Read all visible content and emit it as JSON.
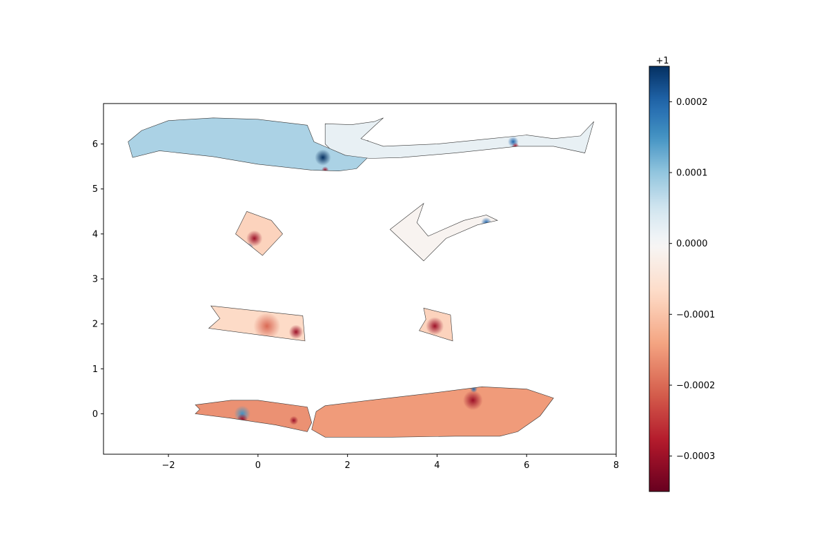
{
  "chart_data": {
    "type": "heatmap",
    "title": "",
    "xlabel": "",
    "ylabel": "",
    "xlim": [
      -3.45,
      8.0
    ],
    "ylim": [
      -0.9,
      6.9
    ],
    "x_ticks": [
      -2,
      0,
      2,
      4,
      6,
      8
    ],
    "y_ticks": [
      0,
      1,
      2,
      3,
      4,
      5,
      6
    ],
    "x_tick_labels": [
      "−2",
      "0",
      "2",
      "4",
      "6",
      "8"
    ],
    "y_tick_labels": [
      "0",
      "1",
      "2",
      "3",
      "4",
      "5",
      "6"
    ],
    "colorbar": {
      "colormap": "RdBu",
      "offset_label": "+1",
      "vmin": -0.00035,
      "vmax": 0.00025,
      "ticks": [
        0.0002,
        0.0001,
        0.0,
        -0.0001,
        -0.0002,
        -0.0003
      ],
      "tick_labels": [
        "0.0002",
        "0.0001",
        "0.0000",
        "−0.0001",
        "−0.0002",
        "−0.0003"
      ]
    },
    "regions": [
      {
        "id": "long-left-top",
        "value": 8e-05,
        "outline": [
          [
            -2.9,
            6.05
          ],
          [
            -2.6,
            6.3
          ],
          [
            -2.0,
            6.52
          ],
          [
            -1.0,
            6.58
          ],
          [
            0.0,
            6.55
          ],
          [
            1.1,
            6.42
          ],
          [
            1.25,
            6.05
          ],
          [
            1.6,
            5.9
          ],
          [
            2.2,
            6.0
          ],
          [
            2.45,
            6.08
          ],
          [
            2.6,
            5.95
          ],
          [
            2.45,
            5.7
          ],
          [
            2.2,
            5.45
          ],
          [
            1.8,
            5.4
          ],
          [
            1.2,
            5.42
          ],
          [
            0.0,
            5.55
          ],
          [
            -1.0,
            5.72
          ],
          [
            -2.2,
            5.85
          ],
          [
            -2.8,
            5.7
          ]
        ],
        "hotspots": [
          [
            1.45,
            5.7,
            0.00025,
            0.18
          ],
          [
            1.5,
            5.42,
            -0.0003,
            0.08
          ]
        ]
      },
      {
        "id": "long-right-top",
        "value": 2e-05,
        "outline": [
          [
            1.5,
            6.45
          ],
          [
            2.1,
            6.43
          ],
          [
            2.6,
            6.5
          ],
          [
            2.8,
            6.58
          ],
          [
            2.6,
            6.4
          ],
          [
            2.3,
            6.12
          ],
          [
            2.8,
            5.95
          ],
          [
            4.0,
            6.0
          ],
          [
            5.2,
            6.12
          ],
          [
            6.0,
            6.2
          ],
          [
            6.6,
            6.12
          ],
          [
            7.2,
            6.18
          ],
          [
            7.5,
            6.5
          ],
          [
            7.3,
            5.8
          ],
          [
            6.6,
            5.95
          ],
          [
            5.8,
            5.95
          ],
          [
            4.4,
            5.8
          ],
          [
            3.2,
            5.7
          ],
          [
            2.5,
            5.68
          ],
          [
            1.95,
            5.75
          ],
          [
            1.6,
            5.9
          ],
          [
            1.5,
            6.0
          ]
        ],
        "hotspots": [
          [
            5.7,
            6.05,
            0.0002,
            0.12
          ],
          [
            5.75,
            5.95,
            -0.0003,
            0.08
          ]
        ]
      },
      {
        "id": "small-mid-left",
        "value": -8e-05,
        "outline": [
          [
            -0.25,
            4.5
          ],
          [
            0.3,
            4.3
          ],
          [
            0.55,
            4.0
          ],
          [
            0.1,
            3.52
          ],
          [
            -0.5,
            4.0
          ]
        ],
        "hotspots": [
          [
            -0.08,
            3.9,
            -0.0003,
            0.18
          ],
          [
            -0.2,
            3.7,
            0.0002,
            0.1
          ]
        ]
      },
      {
        "id": "hook-mid-right",
        "value": -1e-05,
        "outline": [
          [
            2.95,
            4.1
          ],
          [
            3.7,
            4.68
          ],
          [
            3.55,
            4.25
          ],
          [
            3.8,
            3.95
          ],
          [
            4.6,
            4.3
          ],
          [
            5.1,
            4.42
          ],
          [
            5.35,
            4.3
          ],
          [
            4.9,
            4.2
          ],
          [
            4.2,
            3.9
          ],
          [
            3.7,
            3.4
          ]
        ],
        "hotspots": [
          [
            5.1,
            4.25,
            0.0002,
            0.12
          ]
        ]
      },
      {
        "id": "bar-low-left",
        "value": -7e-05,
        "outline": [
          [
            -1.05,
            2.4
          ],
          [
            1.0,
            2.18
          ],
          [
            1.05,
            1.62
          ],
          [
            -1.1,
            1.9
          ],
          [
            -0.85,
            2.12
          ]
        ],
        "hotspots": [
          [
            0.85,
            1.82,
            -0.0003,
            0.16
          ],
          [
            0.2,
            1.95,
            -0.0002,
            0.3
          ]
        ]
      },
      {
        "id": "small-low-right",
        "value": -8e-05,
        "outline": [
          [
            3.7,
            2.35
          ],
          [
            4.3,
            2.2
          ],
          [
            4.35,
            1.62
          ],
          [
            3.6,
            1.85
          ],
          [
            3.75,
            2.1
          ]
        ],
        "hotspots": [
          [
            3.95,
            1.95,
            -0.0003,
            0.2
          ]
        ]
      },
      {
        "id": "bottom-left",
        "value": -0.00016,
        "outline": [
          [
            -1.4,
            0.2
          ],
          [
            -0.6,
            0.3
          ],
          [
            0.0,
            0.3
          ],
          [
            1.1,
            0.15
          ],
          [
            1.2,
            -0.2
          ],
          [
            1.1,
            -0.4
          ],
          [
            0.4,
            -0.25
          ],
          [
            -0.6,
            -0.1
          ],
          [
            -1.4,
            0.0
          ],
          [
            -1.3,
            0.1
          ]
        ],
        "hotspots": [
          [
            -0.35,
            0.0,
            0.00015,
            0.18
          ],
          [
            -0.35,
            -0.12,
            -0.0003,
            0.12
          ],
          [
            0.8,
            -0.15,
            -0.0003,
            0.1
          ]
        ]
      },
      {
        "id": "bottom-right",
        "value": -0.00015,
        "outline": [
          [
            1.3,
            0.05
          ],
          [
            1.5,
            0.18
          ],
          [
            2.5,
            0.3
          ],
          [
            3.8,
            0.45
          ],
          [
            5.0,
            0.6
          ],
          [
            6.0,
            0.55
          ],
          [
            6.6,
            0.35
          ],
          [
            6.3,
            -0.05
          ],
          [
            5.8,
            -0.4
          ],
          [
            5.4,
            -0.5
          ],
          [
            4.4,
            -0.5
          ],
          [
            3.0,
            -0.52
          ],
          [
            1.5,
            -0.52
          ],
          [
            1.2,
            -0.35
          ]
        ],
        "hotspots": [
          [
            4.8,
            0.3,
            -0.0003,
            0.22
          ],
          [
            4.82,
            0.55,
            0.0002,
            0.08
          ]
        ]
      }
    ]
  }
}
